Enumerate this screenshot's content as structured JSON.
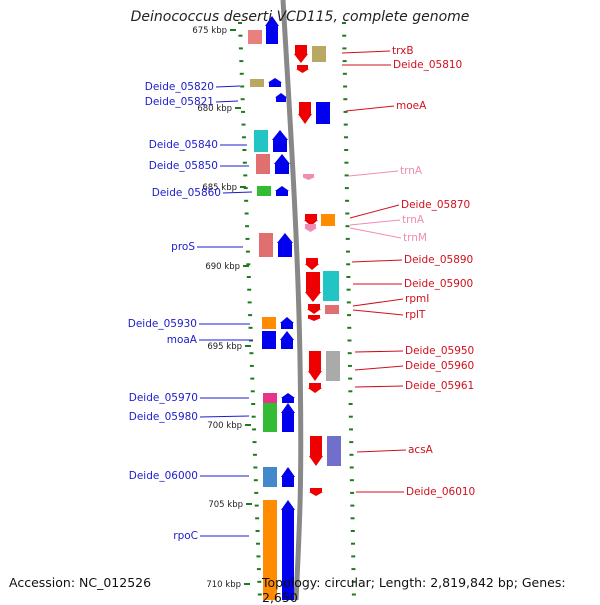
{
  "title": "Deinococcus deserti VCD115, complete genome",
  "footer": {
    "accession": "Accession: NC_012526",
    "topology": "Topology: circular; Length: 2,819,842 bp; Genes: 2,650"
  },
  "colors": {
    "backbone": "#888888",
    "left_label": "#1c1ccc",
    "right_label": "#d0101e",
    "trna_label": "#f08cb4",
    "tick": "#1f7a1f"
  },
  "kbp_ticks": [
    {
      "label": "675 kbp",
      "kbp": 675
    },
    {
      "label": "680 kbp",
      "kbp": 680
    },
    {
      "label": "685 kbp",
      "kbp": 685
    },
    {
      "label": "690 kbp",
      "kbp": 690
    },
    {
      "label": "695 kbp",
      "kbp": 695
    },
    {
      "label": "700 kbp",
      "kbp": 700
    },
    {
      "label": "705 kbp",
      "kbp": 705
    },
    {
      "label": "710 kbp",
      "kbp": 710
    }
  ],
  "left_labels": [
    "Deide_05820",
    "Deide_05821",
    "Deide_05840",
    "Deide_05850",
    "Deide_05860",
    "proS",
    "Deide_05930",
    "moaA",
    "Deide_05970",
    "Deide_05980",
    "Deide_06000",
    "rpoC"
  ],
  "right_labels": [
    "trxB",
    "Deide_05810",
    "moeA",
    "trnA",
    "Deide_05870",
    "trnA",
    "trnM",
    "Deide_05890",
    "Deide_05900",
    "rpmI",
    "rplT",
    "Deide_05950",
    "Deide_05960",
    "Deide_05961",
    "acsA",
    "Deide_06010"
  ],
  "genes_left": [
    {
      "color": "#e88080",
      "dir": "none"
    },
    {
      "color": "#0000ee",
      "dir": "up"
    },
    {
      "color": "#b8a862",
      "dir": "none"
    },
    {
      "color": "#0000ee",
      "dir": "up"
    },
    {
      "color": "#0000ee",
      "dir": "up"
    },
    {
      "color": "#22c4c4",
      "dir": "none"
    },
    {
      "color": "#0000ee",
      "dir": "up"
    },
    {
      "color": "#e07070",
      "dir": "none"
    },
    {
      "color": "#0000ee",
      "dir": "up"
    },
    {
      "color": "#33bb33",
      "dir": "none"
    },
    {
      "color": "#0000ee",
      "dir": "up"
    },
    {
      "color": "#e07070",
      "dir": "none"
    },
    {
      "color": "#0000ee",
      "dir": "up"
    },
    {
      "color": "#ff8c00",
      "dir": "none"
    },
    {
      "color": "#0000ee",
      "dir": "up"
    },
    {
      "color": "#0000ee",
      "dir": "none"
    },
    {
      "color": "#0000ee",
      "dir": "up"
    },
    {
      "color": "#e8338c",
      "dir": "none"
    },
    {
      "color": "#0000ee",
      "dir": "up"
    },
    {
      "color": "#33bb33",
      "dir": "none"
    },
    {
      "color": "#0000ee",
      "dir": "up"
    },
    {
      "color": "#4488cc",
      "dir": "none"
    },
    {
      "color": "#0000ee",
      "dir": "up"
    },
    {
      "color": "#ff8c00",
      "dir": "none"
    },
    {
      "color": "#0000ee",
      "dir": "up"
    }
  ],
  "genes_right": [
    {
      "color": "#ee0000",
      "dir": "down"
    },
    {
      "color": "#b8a862",
      "dir": "none"
    },
    {
      "color": "#ee0000",
      "dir": "down"
    },
    {
      "color": "#ee0000",
      "dir": "down"
    },
    {
      "color": "#0000ee",
      "dir": "none"
    },
    {
      "color": "#f08cb4",
      "dir": "down"
    },
    {
      "color": "#ee0000",
      "dir": "down"
    },
    {
      "color": "#ff8c00",
      "dir": "none"
    },
    {
      "color": "#f08cb4",
      "dir": "down"
    },
    {
      "color": "#ee0000",
      "dir": "down"
    },
    {
      "color": "#ee0000",
      "dir": "down"
    },
    {
      "color": "#22c4c4",
      "dir": "none"
    },
    {
      "color": "#ee0000",
      "dir": "down"
    },
    {
      "color": "#e07070",
      "dir": "none"
    },
    {
      "color": "#ee0000",
      "dir": "down"
    },
    {
      "color": "#ee0000",
      "dir": "down"
    },
    {
      "color": "#aaaaaa",
      "dir": "none"
    },
    {
      "color": "#ee0000",
      "dir": "down"
    },
    {
      "color": "#ee0000",
      "dir": "down"
    },
    {
      "color": "#7070cc",
      "dir": "none"
    },
    {
      "color": "#ee0000",
      "dir": "down"
    }
  ]
}
